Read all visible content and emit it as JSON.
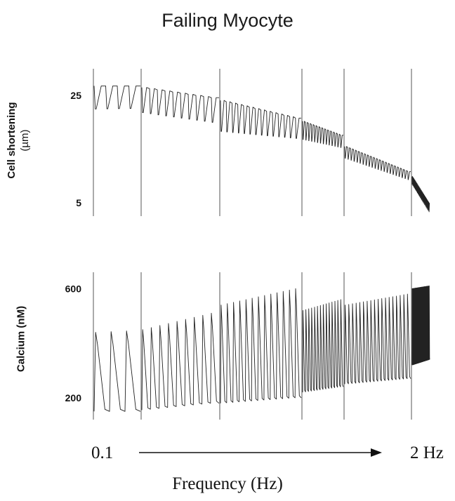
{
  "title": "Failing Myocyte",
  "chart_data": [
    {
      "type": "line",
      "ylabel_line1": "Cell shortening",
      "ylabel_line2": "(µm)",
      "ytick_labels": [
        "25",
        "5"
      ],
      "yticks": [
        25,
        5
      ],
      "ylim": [
        2.5,
        30
      ],
      "stimulation_frequency_markers_hz": [
        0.1,
        2
      ],
      "segments": [
        {
          "beats": 4,
          "diastolic_start": 26.8,
          "diastolic_end": 26.8,
          "systolic_start": 22.5,
          "systolic_end": 22.6
        },
        {
          "beats": 10,
          "diastolic_start": 26.5,
          "diastolic_end": 24.6,
          "systolic_start": 21.8,
          "systolic_end": 20.0
        },
        {
          "beats": 14,
          "diastolic_start": 24.1,
          "diastolic_end": 20.8,
          "systolic_start": 18.3,
          "systolic_end": 17.0
        },
        {
          "beats": 14,
          "diastolic_start": 20.2,
          "diastolic_end": 17.6,
          "systolic_start": 16.8,
          "systolic_end": 15.3
        },
        {
          "beats": 22,
          "diastolic_start": 15.5,
          "diastolic_end": 10.8,
          "systolic_start": 13.3,
          "systolic_end": 9.3
        },
        {
          "beats": 24,
          "diastolic_start": 9.9,
          "diastolic_end": 4.9,
          "systolic_start": 8.4,
          "systolic_end": 3.3
        }
      ]
    },
    {
      "type": "line",
      "ylabel": "Calcium (nM)",
      "ytick_labels": [
        "600",
        "200"
      ],
      "yticks": [
        600,
        200
      ],
      "ylim": [
        120,
        660
      ],
      "stimulation_frequency_markers_hz": [
        0.1,
        2
      ],
      "segments": [
        {
          "beats": 3,
          "diastolic_start": 150,
          "diastolic_end": 150,
          "systolic_start": 440,
          "systolic_end": 445
        },
        {
          "beats": 9,
          "diastolic_start": 155,
          "diastolic_end": 180,
          "systolic_start": 450,
          "systolic_end": 510
        },
        {
          "beats": 13,
          "diastolic_start": 180,
          "diastolic_end": 200,
          "systolic_start": 540,
          "systolic_end": 600
        },
        {
          "beats": 14,
          "diastolic_start": 220,
          "diastolic_end": 240,
          "systolic_start": 520,
          "systolic_end": 560
        },
        {
          "beats": 18,
          "diastolic_start": 250,
          "diastolic_end": 270,
          "systolic_start": 540,
          "systolic_end": 580
        },
        {
          "beats": 34,
          "diastolic_start": 320,
          "diastolic_end": 340,
          "systolic_start": 600,
          "systolic_end": 610
        }
      ]
    }
  ],
  "axis": {
    "start_label": "0.1",
    "end_label": "2 Hz",
    "xlabel": "Frequency (Hz)"
  }
}
